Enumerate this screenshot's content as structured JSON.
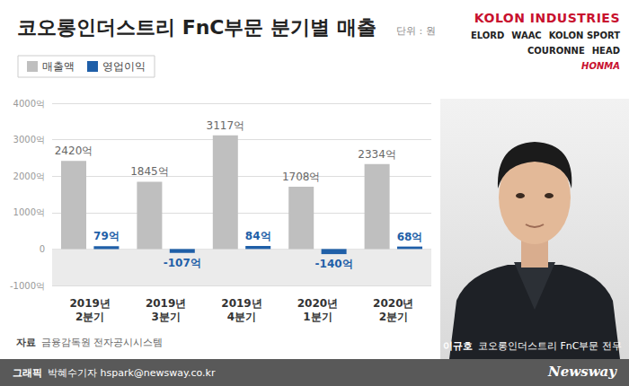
{
  "chart_data": {
    "type": "bar",
    "title": "코오롱인더스트리 FnC부문 분기별 매출",
    "subtitle": "단위 : 원",
    "categories": [
      "2019년 2분기",
      "2019년 3분기",
      "2019년 4분기",
      "2020년 1분기",
      "2020년 2분기"
    ],
    "series": [
      {
        "name": "매출액",
        "color": "#bfbfbf",
        "values": [
          2420,
          1845,
          3117,
          1708,
          2334
        ],
        "value_labels": [
          "2420억",
          "1845억",
          "3117억",
          "1708억",
          "2334억"
        ]
      },
      {
        "name": "영업이익",
        "color": "#1f5fa8",
        "values": [
          79,
          -107,
          84,
          -140,
          68
        ],
        "value_labels": [
          "79억",
          "-107억",
          "84억",
          "-140억",
          "68억"
        ]
      }
    ],
    "ylim": [
      -1000,
      4000
    ],
    "yticks": [
      {
        "value": -1000,
        "label": "-1000억"
      },
      0,
      {
        "value": 1000,
        "label": "1000억"
      },
      {
        "value": 2000,
        "label": "2000억"
      },
      {
        "value": 3000,
        "label": "3000억"
      },
      {
        "value": 4000,
        "label": "4000억"
      }
    ],
    "grid": true,
    "legend": "top-left",
    "data_labels": true
  },
  "brands": {
    "main": "KOLON INDUSTRIES",
    "row1": [
      "ELORD",
      "WAAC",
      "KOLON SPORT"
    ],
    "row2": [
      "COURONNE",
      "HEAD"
    ],
    "row3": [
      "HONMA"
    ]
  },
  "photo_caption": {
    "name": "이규호",
    "role": "코오롱인더스트리 FnC부문 전무"
  },
  "source": {
    "label": "자료",
    "text": "금융감독원 전자공시시스템"
  },
  "footer": {
    "label": "그래픽",
    "credit": "박혜수기자 hspark@newsway.co.kr",
    "publisher": "Newsway"
  }
}
